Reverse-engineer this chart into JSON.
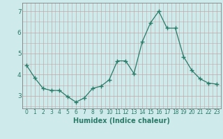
{
  "x": [
    0,
    1,
    2,
    3,
    4,
    5,
    6,
    7,
    8,
    9,
    10,
    11,
    12,
    13,
    14,
    15,
    16,
    17,
    18,
    19,
    20,
    21,
    22,
    23
  ],
  "y": [
    4.45,
    3.85,
    3.35,
    3.25,
    3.25,
    2.95,
    2.7,
    2.9,
    3.35,
    3.45,
    3.75,
    4.65,
    4.65,
    4.05,
    5.55,
    6.45,
    7.0,
    6.2,
    6.2,
    4.85,
    4.2,
    3.8,
    3.6,
    3.55
  ],
  "xlabel": "Humidex (Indice chaleur)",
  "ylabel": "",
  "ylim": [
    2.4,
    7.4
  ],
  "xlim": [
    -0.5,
    23.5
  ],
  "line_color": "#2a7a68",
  "marker": "+",
  "marker_size": 4,
  "bg_color": "#ceeaea",
  "grid_color": "#c0a8a8",
  "yticks": [
    3,
    4,
    5,
    6,
    7
  ],
  "xticks": [
    0,
    1,
    2,
    3,
    4,
    5,
    6,
    7,
    8,
    9,
    10,
    11,
    12,
    13,
    14,
    15,
    16,
    17,
    18,
    19,
    20,
    21,
    22,
    23
  ],
  "tick_fontsize": 5.5,
  "xlabel_fontsize": 7
}
